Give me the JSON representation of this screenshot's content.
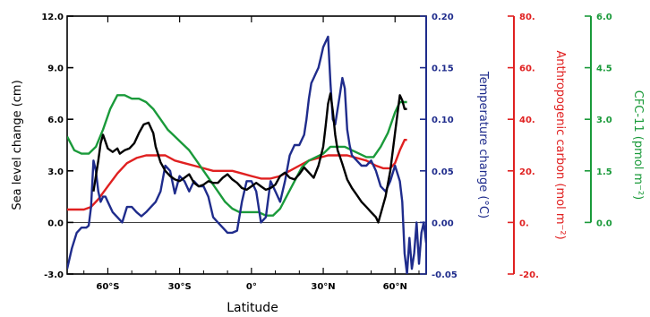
{
  "chart_data": {
    "type": "line",
    "xlabel": "Latitude",
    "xlim": [
      -77,
      73
    ],
    "xticks": [
      {
        "value": -60,
        "label": "60°S"
      },
      {
        "value": -30,
        "label": "30°S"
      },
      {
        "value": 0,
        "label": "0°"
      },
      {
        "value": 30,
        "label": "30°N"
      },
      {
        "value": 60,
        "label": "60°N"
      }
    ],
    "zero_line": true,
    "axes": {
      "sea_level": {
        "label": "Sea level change (cm)",
        "ylim": [
          -3.0,
          12.0
        ],
        "ticks": [
          "-3.0",
          "0.0",
          "3.0",
          "6.0",
          "9.0",
          "12.0"
        ],
        "tick_values": [
          -3,
          0,
          3,
          6,
          9,
          12
        ],
        "color": "#000000"
      },
      "temperature": {
        "label": "Temperature change (°C)",
        "ylim": [
          -0.05,
          0.2
        ],
        "ticks": [
          "-0.05",
          "0.00",
          "0.05",
          "0.10",
          "0.15",
          "0.20"
        ],
        "tick_values": [
          -0.05,
          0,
          0.05,
          0.1,
          0.15,
          0.2
        ],
        "color": "#1f2c8c"
      },
      "carbon": {
        "label": "Anthropogenic carbon (mol m⁻²)",
        "ylim": [
          -20,
          80
        ],
        "ticks": [
          "-20.",
          "0.",
          "20.",
          "40.",
          "60.",
          "80."
        ],
        "tick_values": [
          -20,
          0,
          20,
          40,
          60,
          80
        ],
        "color": "#e02020"
      },
      "cfc": {
        "label": "CFC-11 (pmol m⁻²)",
        "ylim": [
          -1.5,
          6.0
        ],
        "ticks": [
          "0.0",
          "1.5",
          "3.0",
          "4.5",
          "6.0"
        ],
        "tick_values": [
          0,
          1.5,
          3,
          4.5,
          6
        ],
        "color": "#1a9a3a"
      }
    },
    "series": [
      {
        "axis": "sea_level",
        "color": "#000000",
        "x": [
          -66,
          -64,
          -63,
          -62,
          -61,
          -60,
          -58,
          -56,
          -55,
          -53,
          -51,
          -49,
          -47,
          -45,
          -43,
          -41,
          -40,
          -38,
          -36,
          -34,
          -32,
          -30,
          -28,
          -26,
          -24,
          -22,
          -20,
          -18,
          -16,
          -14,
          -12,
          -10,
          -8,
          -6,
          -4,
          -2,
          0,
          2,
          4,
          6,
          8,
          10,
          12,
          14,
          16,
          18,
          20,
          22,
          24,
          26,
          28,
          30,
          31,
          32,
          33,
          34,
          35,
          36,
          37,
          38,
          40,
          42,
          44,
          46,
          48,
          50,
          52,
          53,
          54,
          56,
          58,
          60,
          62,
          63,
          64,
          65
        ],
        "values": [
          1.8,
          3.6,
          4.6,
          5.1,
          4.7,
          4.3,
          4.1,
          4.3,
          4.0,
          4.2,
          4.3,
          4.6,
          5.2,
          5.7,
          5.8,
          5.2,
          4.4,
          3.5,
          3.0,
          2.7,
          2.5,
          2.4,
          2.6,
          2.8,
          2.3,
          2.1,
          2.2,
          2.4,
          2.3,
          2.3,
          2.6,
          2.8,
          2.5,
          2.3,
          2.0,
          1.9,
          2.1,
          2.3,
          2.1,
          1.9,
          2.0,
          2.2,
          2.7,
          2.9,
          2.6,
          2.5,
          2.8,
          3.2,
          2.9,
          2.6,
          3.3,
          4.4,
          5.6,
          6.9,
          7.5,
          6.5,
          5.1,
          4.2,
          3.8,
          3.4,
          2.5,
          2.0,
          1.6,
          1.2,
          0.9,
          0.6,
          0.3,
          0.0,
          0.5,
          1.5,
          3.0,
          5.2,
          7.4,
          7.1,
          6.6,
          6.6
        ]
      },
      {
        "axis": "temperature",
        "color": "#1f2c8c",
        "x": [
          -77,
          -75,
          -73,
          -71,
          -69,
          -68,
          -67,
          -66,
          -65,
          -64,
          -63,
          -62,
          -61,
          -60,
          -58,
          -56,
          -54,
          -52,
          -50,
          -48,
          -46,
          -44,
          -42,
          -40,
          -38,
          -36,
          -34,
          -32,
          -30,
          -28,
          -26,
          -24,
          -22,
          -20,
          -18,
          -16,
          -14,
          -12,
          -10,
          -8,
          -6,
          -4,
          -2,
          0,
          2,
          4,
          6,
          8,
          10,
          12,
          14,
          16,
          18,
          20,
          21,
          22,
          23,
          24,
          25,
          26,
          27,
          28,
          29,
          30,
          31,
          32,
          33,
          34,
          35,
          36,
          37,
          38,
          39,
          40,
          41,
          42,
          44,
          46,
          48,
          50,
          52,
          54,
          56,
          58,
          60,
          62,
          63,
          64,
          65,
          66,
          67,
          68,
          69,
          70,
          71,
          72,
          73
        ],
        "values": [
          -0.045,
          -0.025,
          -0.01,
          -0.005,
          -0.005,
          -0.003,
          0.015,
          0.06,
          0.05,
          0.03,
          0.02,
          0.025,
          0.025,
          0.02,
          0.01,
          0.005,
          0.0,
          0.015,
          0.015,
          0.01,
          0.006,
          0.01,
          0.015,
          0.02,
          0.03,
          0.055,
          0.05,
          0.028,
          0.045,
          0.04,
          0.03,
          0.04,
          0.035,
          0.035,
          0.025,
          0.005,
          0.0,
          -0.005,
          -0.01,
          -0.01,
          -0.008,
          0.02,
          0.04,
          0.04,
          0.03,
          0.0,
          0.005,
          0.04,
          0.03,
          0.02,
          0.04,
          0.065,
          0.075,
          0.075,
          0.08,
          0.085,
          0.1,
          0.12,
          0.135,
          0.14,
          0.145,
          0.15,
          0.16,
          0.17,
          0.175,
          0.18,
          0.135,
          0.1,
          0.095,
          0.11,
          0.125,
          0.14,
          0.13,
          0.09,
          0.075,
          0.065,
          0.06,
          0.055,
          0.055,
          0.06,
          0.05,
          0.035,
          0.03,
          0.04,
          0.055,
          0.04,
          0.02,
          -0.03,
          -0.05,
          -0.015,
          -0.045,
          -0.03,
          0.0,
          -0.04,
          -0.01,
          0.0,
          -0.02
        ]
      },
      {
        "axis": "carbon",
        "color": "#e02020",
        "x": [
          -77,
          -74,
          -70,
          -67,
          -64,
          -60,
          -56,
          -52,
          -48,
          -44,
          -40,
          -36,
          -32,
          -28,
          -24,
          -20,
          -16,
          -12,
          -8,
          -4,
          0,
          4,
          8,
          12,
          16,
          20,
          24,
          28,
          32,
          36,
          40,
          44,
          48,
          52,
          55,
          58,
          60,
          62,
          64,
          65
        ],
        "values": [
          5,
          5,
          5,
          6,
          9,
          14,
          19,
          23,
          25,
          26,
          26,
          26,
          24,
          23,
          22,
          21,
          20,
          20,
          20,
          19,
          18,
          17,
          17,
          18,
          20,
          22,
          24,
          25,
          26,
          26,
          26,
          25,
          24,
          22,
          21,
          21,
          23,
          28,
          32,
          32
        ]
      },
      {
        "axis": "cfc",
        "color": "#1a9a3a",
        "x": [
          -77,
          -74,
          -71,
          -68,
          -65,
          -62,
          -59,
          -56,
          -53,
          -50,
          -47,
          -44,
          -41,
          -38,
          -35,
          -32,
          -29,
          -26,
          -23,
          -20,
          -17,
          -14,
          -11,
          -8,
          -5,
          -2,
          0,
          3,
          6,
          9,
          12,
          15,
          18,
          21,
          24,
          27,
          30,
          33,
          36,
          39,
          42,
          45,
          48,
          51,
          54,
          57,
          60,
          62,
          64,
          65
        ],
        "values": [
          2.5,
          2.1,
          2.0,
          2.0,
          2.2,
          2.7,
          3.3,
          3.7,
          3.7,
          3.6,
          3.6,
          3.5,
          3.3,
          3.0,
          2.7,
          2.5,
          2.3,
          2.1,
          1.8,
          1.5,
          1.2,
          0.9,
          0.6,
          0.4,
          0.3,
          0.3,
          0.3,
          0.3,
          0.2,
          0.2,
          0.4,
          0.8,
          1.2,
          1.6,
          1.8,
          1.9,
          2.0,
          2.2,
          2.2,
          2.2,
          2.1,
          2.0,
          1.9,
          1.9,
          2.2,
          2.6,
          3.2,
          3.5,
          3.5,
          3.5
        ]
      }
    ]
  }
}
